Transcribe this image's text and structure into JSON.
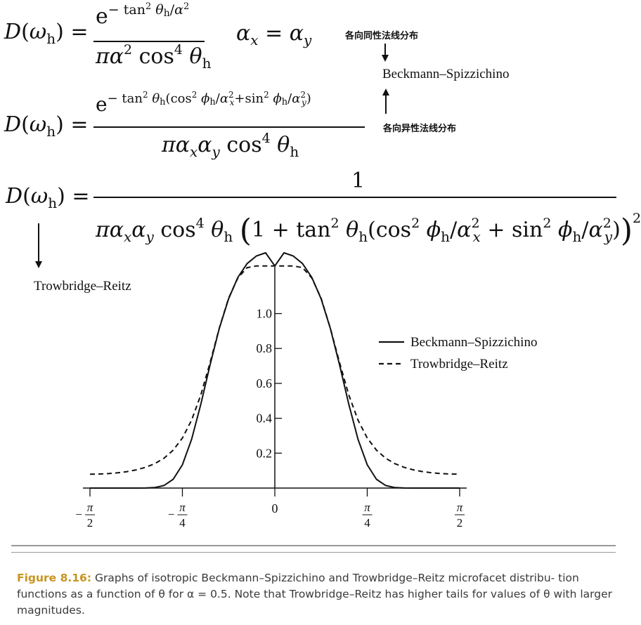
{
  "equations": {
    "eq1": {
      "lhs": "D(ωh) =",
      "num_base": "e",
      "num_exp": "− tan² θh/α²",
      "den": "πα² cos⁴ θh",
      "condition": "αx = αy"
    },
    "eq2": {
      "lhs": "D(ωh) =",
      "num_base": "e",
      "num_exp": "− tan² θh(cos² ϕh/αx²+sin² ϕh/αy²)",
      "den": "παxαy cos⁴ θh"
    },
    "eq3": {
      "lhs": "D(ωh) =",
      "num": "1",
      "den": "παxαy cos⁴ θh (1 + tan² θh(cos² ϕh/αx² + sin² ϕh/αy²))²"
    }
  },
  "annotations": {
    "isotropic_note": "各向同性法线分布",
    "anisotropic_note": "各向异性法线分布",
    "beckmann_label": "Beckmann–Spizzichino",
    "trowbridge_label": "Trowbridge–Reitz"
  },
  "chart_data": {
    "type": "line",
    "x": [
      -1.5708,
      -1.4923,
      -1.4137,
      -1.3352,
      -1.2566,
      -1.1781,
      -1.0996,
      -1.021,
      -0.9425,
      -0.8639,
      -0.7854,
      -0.7069,
      -0.6283,
      -0.5498,
      -0.4712,
      -0.3927,
      -0.3142,
      -0.2356,
      -0.1571,
      -0.0785,
      0.0,
      0.0785,
      0.1571,
      0.2356,
      0.3142,
      0.3927,
      0.4712,
      0.5498,
      0.6283,
      0.7069,
      0.7854,
      0.8639,
      0.9425,
      1.021,
      1.0996,
      1.1781,
      1.2566,
      1.3352,
      1.4137,
      1.4923,
      1.5708
    ],
    "series": [
      {
        "name": "Beckmann–Spizzichino",
        "style": "solid",
        "values": [
          0.0,
          0.0,
          0.0,
          0.0,
          0.0,
          0.0,
          0.0003,
          0.0027,
          0.0143,
          0.0505,
          0.1331,
          0.2794,
          0.4813,
          0.7063,
          0.9164,
          1.0856,
          1.2074,
          1.2867,
          1.3296,
          1.3483,
          1.2732,
          1.3483,
          1.3296,
          1.2867,
          1.2074,
          1.0856,
          0.9164,
          0.7063,
          0.4813,
          0.2794,
          0.1331,
          0.0505,
          0.0143,
          0.0027,
          0.0003,
          0.0,
          0.0,
          0.0,
          0.0,
          0.0,
          0.0
        ]
      },
      {
        "name": "Trowbridge–Reitz",
        "style": "dashed",
        "values": [
          0.0796,
          0.0804,
          0.0829,
          0.0874,
          0.0942,
          0.1042,
          0.1187,
          0.1398,
          0.1708,
          0.2172,
          0.2865,
          0.3893,
          0.5345,
          0.7194,
          0.9177,
          1.0885,
          1.2041,
          1.2633,
          1.2732,
          1.2732,
          1.2732,
          1.2732,
          1.2732,
          1.2633,
          1.2041,
          1.0885,
          0.9177,
          0.7194,
          0.5345,
          0.3893,
          0.2865,
          0.2172,
          0.1708,
          0.1398,
          0.1187,
          0.1042,
          0.0942,
          0.0874,
          0.0829,
          0.0804,
          0.0796
        ]
      }
    ],
    "xlim": [
      -1.5708,
      1.5708
    ],
    "ylim": [
      0,
      1.3
    ],
    "xticks": [
      {
        "value": -1.5708,
        "label_num": "π",
        "label_den": "2",
        "sign": "−"
      },
      {
        "value": -0.7854,
        "label_num": "π",
        "label_den": "4",
        "sign": "−"
      },
      {
        "value": 0,
        "label_num": "0",
        "label_den": "",
        "sign": ""
      },
      {
        "value": 0.7854,
        "label_num": "π",
        "label_den": "4",
        "sign": ""
      },
      {
        "value": 1.5708,
        "label_num": "π",
        "label_den": "2",
        "sign": ""
      }
    ],
    "yticks": [
      {
        "value": 0.2,
        "label": "0.2"
      },
      {
        "value": 0.4,
        "label": "0.4"
      },
      {
        "value": 0.6,
        "label": "0.6"
      },
      {
        "value": 0.8,
        "label": "0.8"
      },
      {
        "value": 1.0,
        "label": "1.0"
      }
    ],
    "legend": {
      "position": "right",
      "items": [
        {
          "label": "Beckmann–Spizzichino",
          "style": "solid"
        },
        {
          "label": "Trowbridge–Reitz",
          "style": "dashed"
        }
      ]
    },
    "grid": false
  },
  "caption": {
    "label": "Figure 8.16:",
    "text": "Graphs of isotropic Beckmann–Spizzichino and Trowbridge–Reitz microfacet distribu- tion functions as a function of θ for α = 0.5. Note that Trowbridge–Reitz has higher tails for values of θ with larger magnitudes."
  },
  "colors": {
    "caption_label": "#c8941e",
    "caption_text": "#3a3a3a",
    "rule": "#999999",
    "ink": "#111111"
  }
}
